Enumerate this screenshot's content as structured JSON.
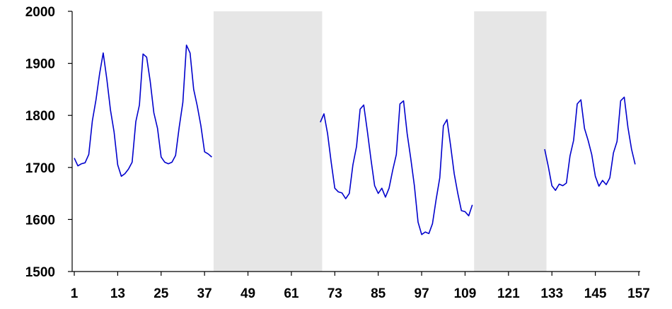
{
  "chart_data": {
    "type": "line",
    "title": "",
    "xlabel": "",
    "ylabel": "",
    "xlim": [
      1,
      157
    ],
    "ylim": [
      1500,
      2000
    ],
    "yticks": [
      1500,
      1600,
      1700,
      1800,
      1900,
      2000
    ],
    "xticks": [
      1,
      13,
      25,
      37,
      49,
      61,
      73,
      85,
      97,
      109,
      121,
      133,
      145,
      157
    ],
    "grid": false,
    "legend": "none",
    "colors": {
      "line": "#0000cc",
      "shade": "#e6e6e6",
      "axis": "#000000"
    },
    "shaded_ranges": [
      [
        39.5,
        69.5
      ],
      [
        111.5,
        131.5
      ]
    ],
    "series": [
      {
        "points": [
          [
            1,
            1718
          ],
          [
            2,
            1703
          ],
          [
            3,
            1707
          ],
          [
            4,
            1709
          ],
          [
            5,
            1725
          ],
          [
            6,
            1790
          ],
          [
            7,
            1830
          ],
          [
            8,
            1880
          ],
          [
            9,
            1920
          ],
          [
            10,
            1870
          ],
          [
            11,
            1810
          ],
          [
            12,
            1768
          ],
          [
            13,
            1705
          ],
          [
            14,
            1683
          ],
          [
            15,
            1688
          ],
          [
            16,
            1697
          ],
          [
            17,
            1710
          ],
          [
            18,
            1788
          ],
          [
            19,
            1820
          ],
          [
            20,
            1918
          ],
          [
            21,
            1912
          ],
          [
            22,
            1865
          ],
          [
            23,
            1805
          ],
          [
            24,
            1775
          ],
          [
            25,
            1720
          ],
          [
            26,
            1710
          ],
          [
            27,
            1707
          ],
          [
            28,
            1710
          ],
          [
            29,
            1723
          ],
          [
            30,
            1777
          ],
          [
            31,
            1825
          ],
          [
            32,
            1935
          ],
          [
            33,
            1920
          ],
          [
            34,
            1850
          ],
          [
            35,
            1818
          ],
          [
            36,
            1780
          ],
          [
            37,
            1730
          ],
          [
            38,
            1726
          ],
          [
            39,
            1720
          ],
          [
            69,
            1787
          ],
          [
            70,
            1803
          ],
          [
            71,
            1765
          ],
          [
            72,
            1710
          ],
          [
            73,
            1660
          ],
          [
            74,
            1653
          ],
          [
            75,
            1651
          ],
          [
            76,
            1640
          ],
          [
            77,
            1650
          ],
          [
            78,
            1705
          ],
          [
            79,
            1740
          ],
          [
            80,
            1812
          ],
          [
            81,
            1820
          ],
          [
            82,
            1770
          ],
          [
            83,
            1715
          ],
          [
            84,
            1665
          ],
          [
            85,
            1650
          ],
          [
            86,
            1660
          ],
          [
            87,
            1643
          ],
          [
            88,
            1660
          ],
          [
            89,
            1695
          ],
          [
            90,
            1725
          ],
          [
            91,
            1822
          ],
          [
            92,
            1828
          ],
          [
            93,
            1765
          ],
          [
            94,
            1717
          ],
          [
            95,
            1665
          ],
          [
            96,
            1595
          ],
          [
            97,
            1571
          ],
          [
            98,
            1576
          ],
          [
            99,
            1573
          ],
          [
            100,
            1592
          ],
          [
            101,
            1638
          ],
          [
            102,
            1680
          ],
          [
            103,
            1780
          ],
          [
            104,
            1792
          ],
          [
            105,
            1742
          ],
          [
            106,
            1688
          ],
          [
            107,
            1650
          ],
          [
            108,
            1617
          ],
          [
            109,
            1615
          ],
          [
            110,
            1607
          ],
          [
            111,
            1628
          ],
          [
            131,
            1735
          ],
          [
            132,
            1702
          ],
          [
            133,
            1665
          ],
          [
            134,
            1656
          ],
          [
            135,
            1668
          ],
          [
            136,
            1665
          ],
          [
            137,
            1670
          ],
          [
            138,
            1722
          ],
          [
            139,
            1752
          ],
          [
            140,
            1822
          ],
          [
            141,
            1830
          ],
          [
            142,
            1775
          ],
          [
            143,
            1752
          ],
          [
            144,
            1725
          ],
          [
            145,
            1683
          ],
          [
            146,
            1664
          ],
          [
            147,
            1675
          ],
          [
            148,
            1667
          ],
          [
            149,
            1680
          ],
          [
            150,
            1728
          ],
          [
            151,
            1750
          ],
          [
            152,
            1828
          ],
          [
            153,
            1835
          ],
          [
            154,
            1777
          ],
          [
            155,
            1735
          ],
          [
            156,
            1706
          ]
        ]
      }
    ]
  }
}
